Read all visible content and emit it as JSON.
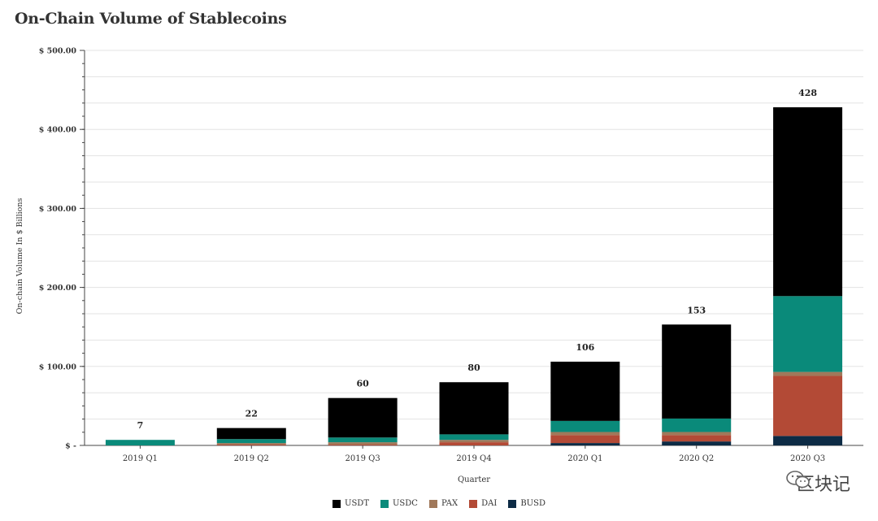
{
  "chart_data": {
    "type": "bar",
    "stacked": true,
    "title": "On-Chain Volume of Stablecoins",
    "xlabel": "Quarter",
    "ylabel": "On-chain Volume In $ Billions",
    "ylim": [
      0,
      500
    ],
    "yticks": [
      {
        "value": 0,
        "label": "$ -"
      },
      {
        "value": 100,
        "label": "$ 100.00"
      },
      {
        "value": 200,
        "label": "$ 200.00"
      },
      {
        "value": 300,
        "label": "$ 300.00"
      },
      {
        "value": 400,
        "label": "$ 400.00"
      },
      {
        "value": 500,
        "label": "$ 500.00"
      }
    ],
    "grid": true,
    "legend_position": "bottom",
    "categories": [
      "2019 Q1",
      "2019 Q2",
      "2019 Q3",
      "2019 Q4",
      "2020 Q1",
      "2020 Q2",
      "2020 Q3"
    ],
    "totals": [
      "7",
      "22",
      "60",
      "80",
      "106",
      "153",
      "428"
    ],
    "total_values": [
      7,
      22,
      60,
      80,
      106,
      153,
      428
    ],
    "series": [
      {
        "name": "BUSD",
        "color": "#0d2b45",
        "values": [
          0,
          0,
          0,
          0,
          3,
          5,
          12
        ]
      },
      {
        "name": "DAI",
        "color": "#b34a36",
        "values": [
          0,
          1,
          1,
          4,
          10,
          8,
          76
        ]
      },
      {
        "name": "PAX",
        "color": "#a0785a",
        "values": [
          0,
          2,
          3,
          3,
          4,
          4,
          5
        ]
      },
      {
        "name": "USDC",
        "color": "#0a8a7a",
        "values": [
          7,
          5,
          6,
          7,
          14,
          17,
          96
        ]
      },
      {
        "name": "USDT",
        "color": "#000000",
        "values": [
          0,
          14,
          50,
          66,
          75,
          119,
          239
        ]
      }
    ],
    "legend_order": [
      "USDT",
      "USDC",
      "PAX",
      "DAI",
      "BUSD"
    ]
  },
  "watermark": {
    "text": "区块记",
    "icon": "wechat-icon"
  }
}
